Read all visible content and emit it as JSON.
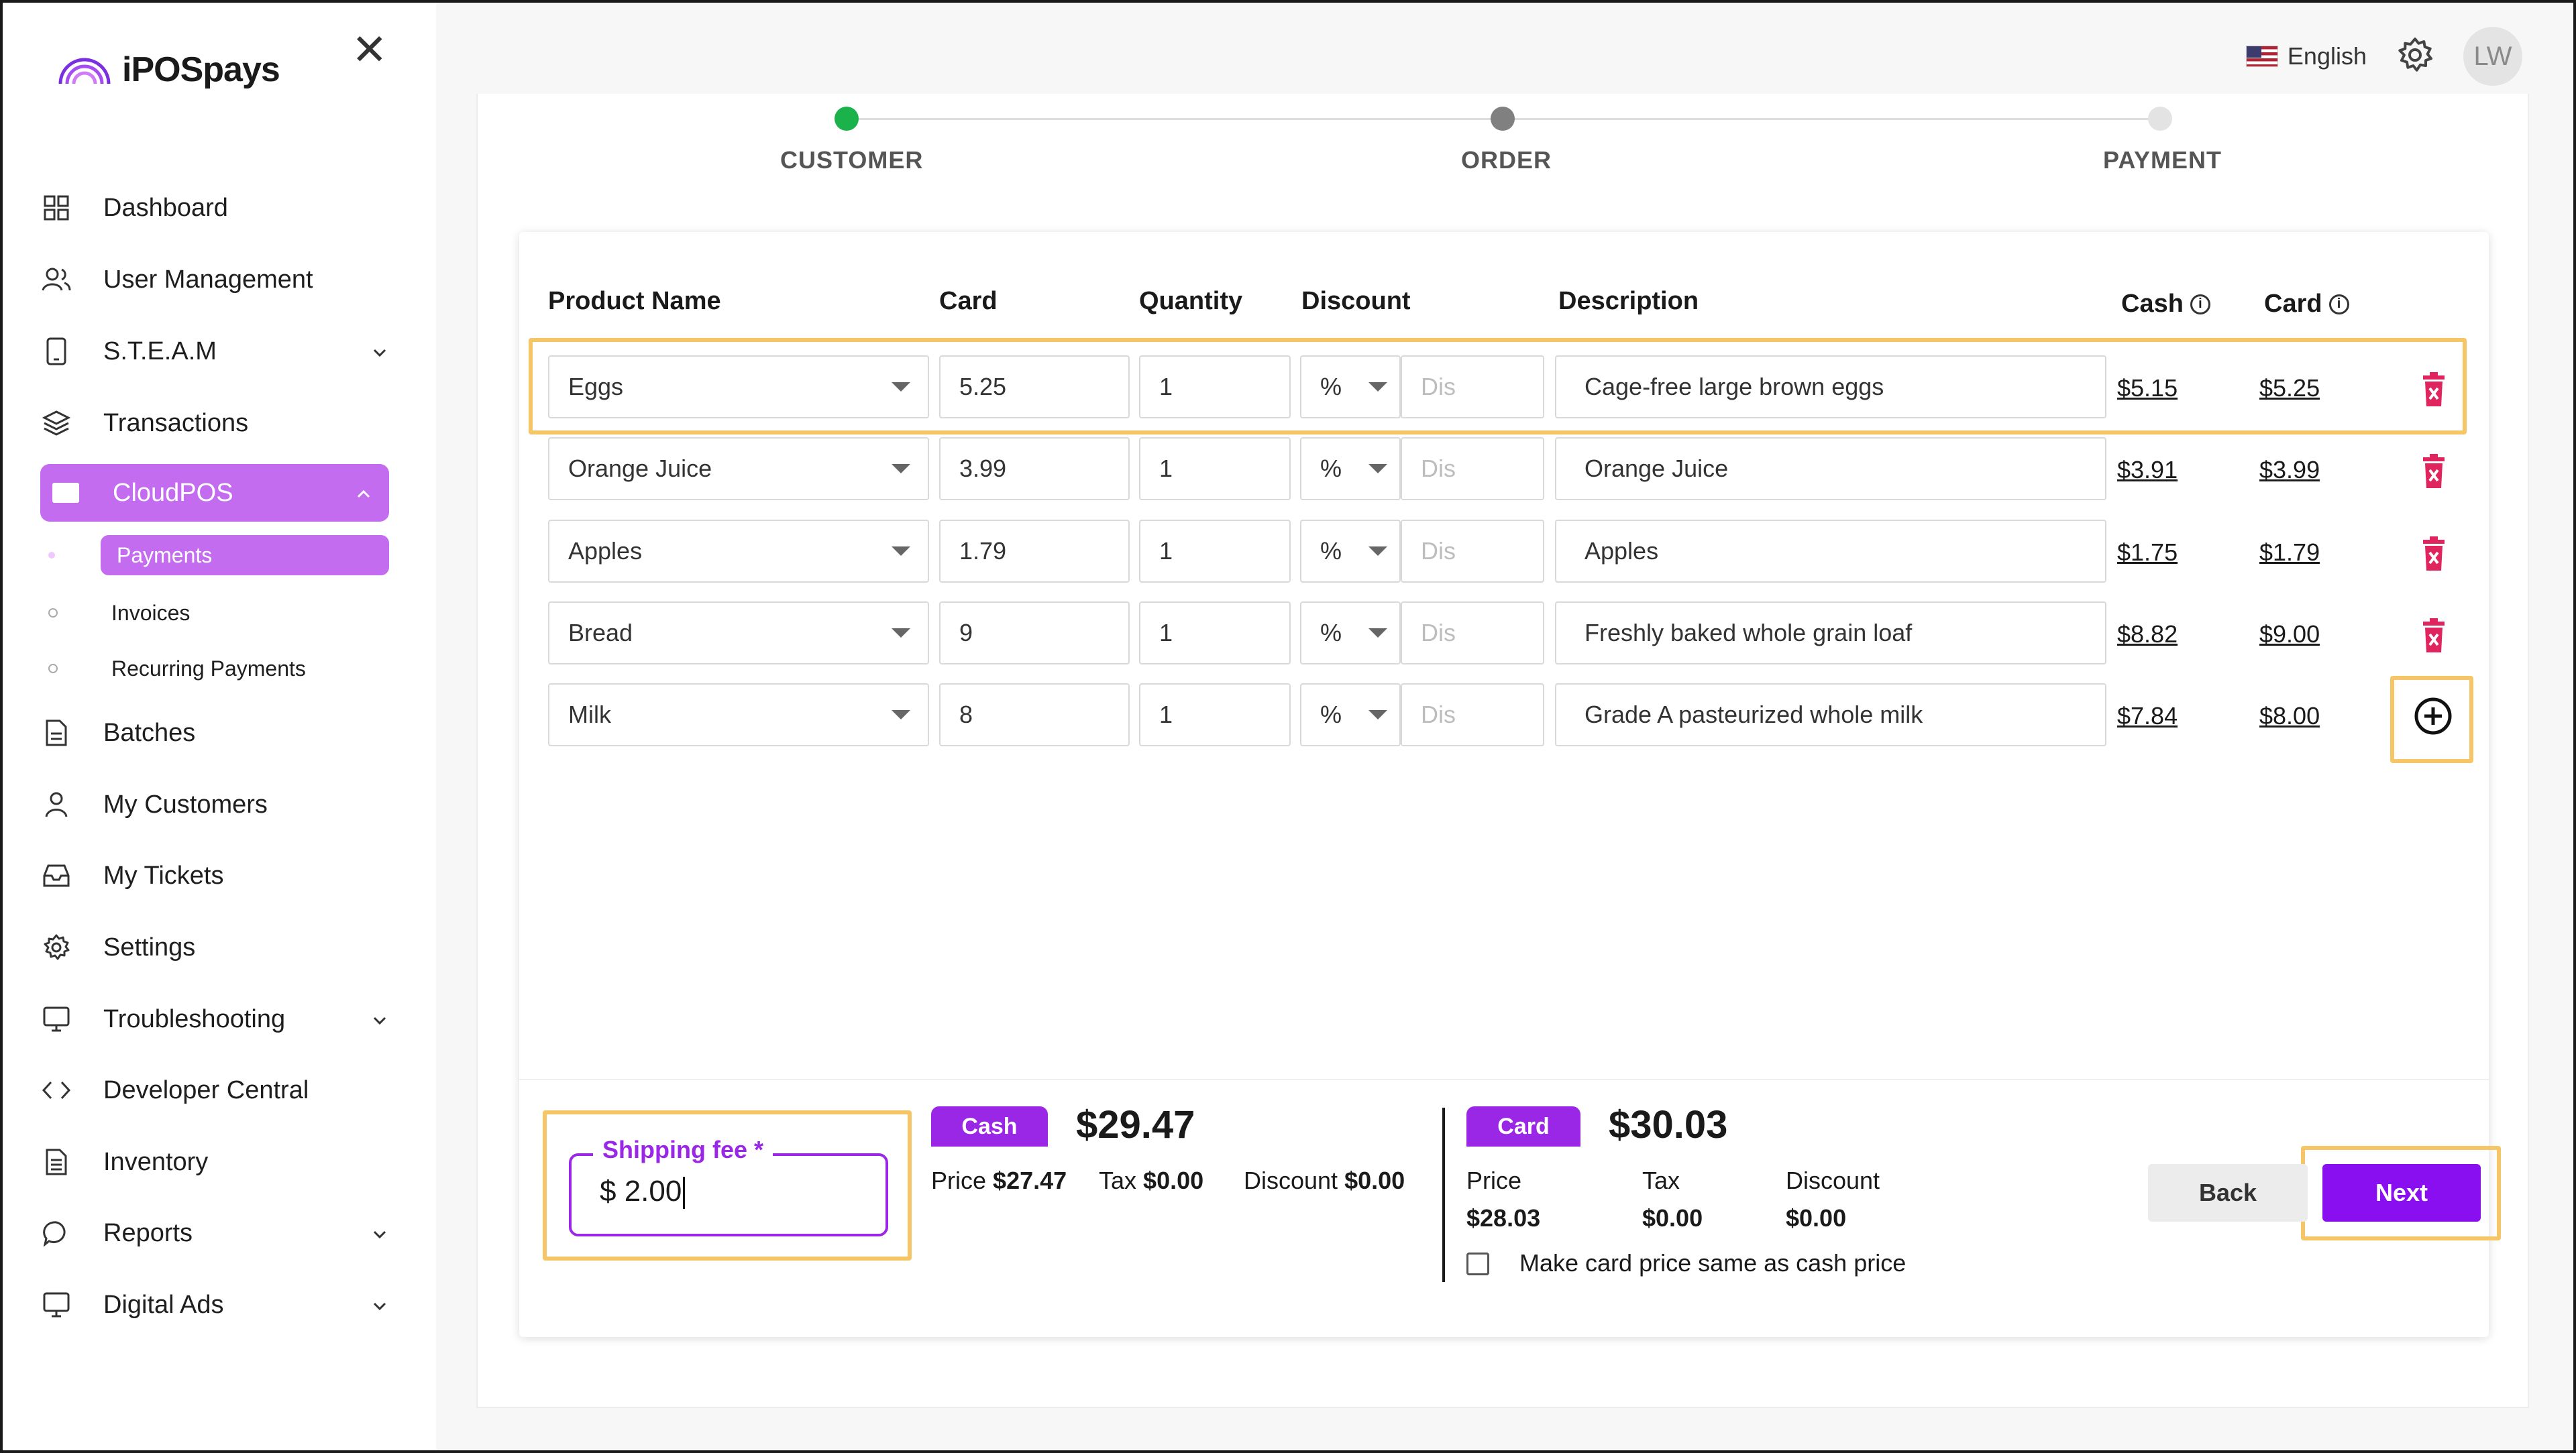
{
  "app": {
    "brand": "iPOSpays"
  },
  "header": {
    "language": "English",
    "avatar_initials": "LW",
    "icons": [
      "us-flag-icon",
      "gear-icon"
    ]
  },
  "sidebar": {
    "items": [
      {
        "label": "Dashboard",
        "icon": "grid-icon"
      },
      {
        "label": "User Management",
        "icon": "users-icon"
      },
      {
        "label": "S.T.E.A.M",
        "icon": "tablet-icon",
        "chevron": "down"
      },
      {
        "label": "Transactions",
        "icon": "layers-icon"
      },
      {
        "label": "CloudPOS",
        "icon": "card-icon",
        "chevron": "up",
        "active": true
      },
      {
        "label": "Batches",
        "icon": "document-icon"
      },
      {
        "label": "My Customers",
        "icon": "person-icon"
      },
      {
        "label": "My Tickets",
        "icon": "inbox-icon"
      },
      {
        "label": "Settings",
        "icon": "gear-icon"
      },
      {
        "label": "Troubleshooting",
        "icon": "monitor-icon",
        "chevron": "down"
      },
      {
        "label": "Developer Central",
        "icon": "code-icon"
      },
      {
        "label": "Inventory",
        "icon": "clipboard-icon"
      },
      {
        "label": "Reports",
        "icon": "chat-icon",
        "chevron": "down"
      },
      {
        "label": "Digital Ads",
        "icon": "screen-icon",
        "chevron": "down"
      }
    ],
    "subitems": [
      {
        "label": "Payments",
        "active": true
      },
      {
        "label": "Invoices"
      },
      {
        "label": "Recurring Payments"
      }
    ]
  },
  "stepper": {
    "steps": [
      {
        "label": "CUSTOMER",
        "state": "complete",
        "color": "#1bb24b"
      },
      {
        "label": "ORDER",
        "state": "current",
        "color": "#808080"
      },
      {
        "label": "PAYMENT",
        "state": "upcoming",
        "color": "#e0e0e0"
      }
    ]
  },
  "table": {
    "headers": {
      "product": "Product Name",
      "card": "Card",
      "quantity": "Quantity",
      "discount": "Discount",
      "description": "Description",
      "cash_price": "Cash",
      "card_price": "Card"
    },
    "discount_placeholder": "Dis",
    "rows": [
      {
        "product": "Eggs",
        "card": "5.25",
        "quantity": "1",
        "discount_type": "%",
        "description": "Cage-free large brown eggs",
        "cash_price": "$5.15",
        "card_price": "$5.25",
        "action": "delete"
      },
      {
        "product": "Orange Juice",
        "card": "3.99",
        "quantity": "1",
        "discount_type": "%",
        "description": "Orange Juice",
        "cash_price": "$3.91",
        "card_price": "$3.99",
        "action": "delete"
      },
      {
        "product": "Apples",
        "card": "1.79",
        "quantity": "1",
        "discount_type": "%",
        "description": "Apples",
        "cash_price": "$1.75",
        "card_price": "$1.79",
        "action": "delete"
      },
      {
        "product": "Bread",
        "card": "9",
        "quantity": "1",
        "discount_type": "%",
        "description": "Freshly baked whole grain loaf",
        "cash_price": "$8.82",
        "card_price": "$9.00",
        "action": "delete"
      },
      {
        "product": "Milk",
        "card": "8",
        "quantity": "1",
        "discount_type": "%",
        "description": "Grade A pasteurized whole milk",
        "cash_price": "$7.84",
        "card_price": "$8.00",
        "action": "add"
      }
    ]
  },
  "shipping": {
    "label": "Shipping fee *",
    "value": "$ 2.00"
  },
  "cash_summary": {
    "tag": "Cash",
    "total": "$29.47",
    "price_label": "Price",
    "price": "$27.47",
    "tax_label": "Tax",
    "tax": "$0.00",
    "discount_label": "Discount",
    "discount": "$0.00"
  },
  "card_summary": {
    "tag": "Card",
    "total": "$30.03",
    "price_label": "Price",
    "price": "$28.03",
    "tax_label": "Tax",
    "tax": "$0.00",
    "discount_label": "Discount",
    "discount": "$0.00",
    "checkbox_label": "Make card price same as cash price",
    "checkbox_checked": false
  },
  "buttons": {
    "back": "Back",
    "next": "Next"
  },
  "colors": {
    "accent": "#9b27e6",
    "sidebar_active": "#c36cf0",
    "delete": "#e0245e",
    "highlight": "#f5c566",
    "complete": "#1bb24b"
  }
}
